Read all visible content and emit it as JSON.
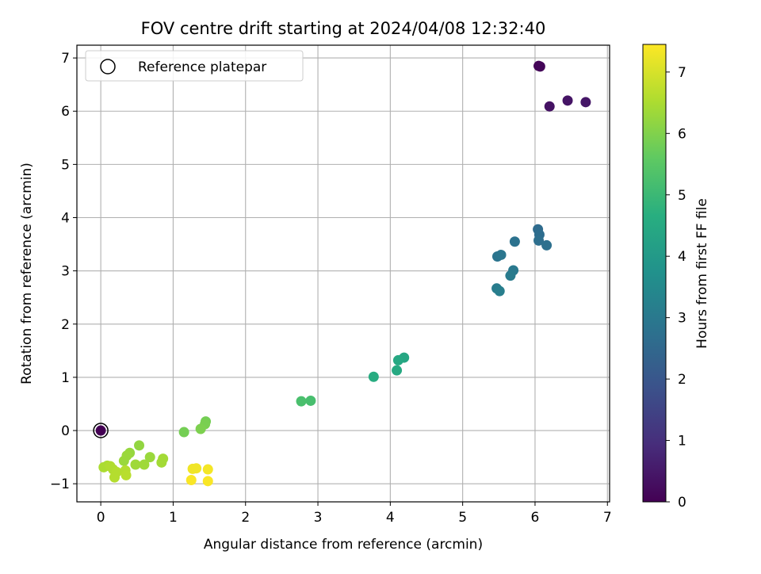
{
  "chart_data": {
    "type": "scatter",
    "title": "FOV centre drift starting at 2024/04/08 12:32:40",
    "xlabel": "Angular distance from reference (arcmin)",
    "ylabel": "Rotation from reference (arcmin)",
    "xlim": [
      -0.33,
      7.03
    ],
    "ylim": [
      -1.34,
      7.24
    ],
    "xticks": [
      0,
      1,
      2,
      3,
      4,
      5,
      6,
      7
    ],
    "xtick_labels": [
      "0",
      "1",
      "2",
      "3",
      "4",
      "5",
      "6",
      "7"
    ],
    "yticks": [
      -1,
      0,
      1,
      2,
      3,
      4,
      5,
      6,
      7
    ],
    "ytick_labels": [
      "−1",
      "0",
      "1",
      "2",
      "3",
      "4",
      "5",
      "6",
      "7"
    ],
    "grid": true,
    "legend": {
      "placement": "top-left",
      "entries": [
        "Reference platepar"
      ]
    },
    "colorbar": {
      "label": "Hours from first FF file",
      "range": [
        0,
        7.45
      ],
      "ticks": [
        0,
        1,
        2,
        3,
        4,
        5,
        6,
        7
      ],
      "tick_labels": [
        "0",
        "1",
        "2",
        "3",
        "4",
        "5",
        "6",
        "7"
      ],
      "colormap": "viridis"
    },
    "reference_point": {
      "x": 0,
      "y": 0
    },
    "points": [
      {
        "x": 0.0,
        "y": 0.0,
        "c": 0.0
      },
      {
        "x": 6.05,
        "y": 6.85,
        "c": 0.05
      },
      {
        "x": 6.07,
        "y": 6.84,
        "c": 0.1
      },
      {
        "x": 6.2,
        "y": 6.09,
        "c": 0.35
      },
      {
        "x": 6.45,
        "y": 6.2,
        "c": 0.4
      },
      {
        "x": 6.7,
        "y": 6.17,
        "c": 0.45
      },
      {
        "x": 6.04,
        "y": 3.78,
        "c": 2.6
      },
      {
        "x": 6.06,
        "y": 3.68,
        "c": 2.65
      },
      {
        "x": 6.05,
        "y": 3.57,
        "c": 2.7
      },
      {
        "x": 6.16,
        "y": 3.48,
        "c": 2.75
      },
      {
        "x": 5.72,
        "y": 3.55,
        "c": 2.8
      },
      {
        "x": 5.48,
        "y": 3.27,
        "c": 2.85
      },
      {
        "x": 5.53,
        "y": 3.3,
        "c": 2.9
      },
      {
        "x": 5.7,
        "y": 3.01,
        "c": 3.0
      },
      {
        "x": 5.66,
        "y": 2.91,
        "c": 3.05
      },
      {
        "x": 5.47,
        "y": 2.67,
        "c": 3.1
      },
      {
        "x": 5.51,
        "y": 2.62,
        "c": 3.15
      },
      {
        "x": 4.19,
        "y": 1.37,
        "c": 4.4
      },
      {
        "x": 4.11,
        "y": 1.32,
        "c": 4.45
      },
      {
        "x": 4.09,
        "y": 1.13,
        "c": 4.5
      },
      {
        "x": 3.77,
        "y": 1.01,
        "c": 4.6
      },
      {
        "x": 2.9,
        "y": 0.56,
        "c": 5.2
      },
      {
        "x": 2.77,
        "y": 0.55,
        "c": 5.25
      },
      {
        "x": 1.45,
        "y": 0.17,
        "c": 5.85
      },
      {
        "x": 1.44,
        "y": 0.12,
        "c": 5.9
      },
      {
        "x": 1.38,
        "y": 0.03,
        "c": 5.95
      },
      {
        "x": 1.15,
        "y": -0.03,
        "c": 5.85
      },
      {
        "x": 0.53,
        "y": -0.28,
        "c": 6.2
      },
      {
        "x": 0.4,
        "y": -0.42,
        "c": 6.25
      },
      {
        "x": 0.36,
        "y": -0.47,
        "c": 6.3
      },
      {
        "x": 0.32,
        "y": -0.57,
        "c": 6.3
      },
      {
        "x": 0.48,
        "y": -0.64,
        "c": 6.35
      },
      {
        "x": 0.6,
        "y": -0.64,
        "c": 6.35
      },
      {
        "x": 0.68,
        "y": -0.5,
        "c": 6.3
      },
      {
        "x": 0.86,
        "y": -0.53,
        "c": 6.4
      },
      {
        "x": 0.84,
        "y": -0.6,
        "c": 6.4
      },
      {
        "x": 0.04,
        "y": -0.69,
        "c": 6.5
      },
      {
        "x": 0.09,
        "y": -0.66,
        "c": 6.5
      },
      {
        "x": 0.13,
        "y": -0.67,
        "c": 6.55
      },
      {
        "x": 0.17,
        "y": -0.73,
        "c": 6.55
      },
      {
        "x": 0.22,
        "y": -0.78,
        "c": 6.6
      },
      {
        "x": 0.19,
        "y": -0.88,
        "c": 6.6
      },
      {
        "x": 0.34,
        "y": -0.75,
        "c": 6.6
      },
      {
        "x": 0.35,
        "y": -0.84,
        "c": 6.65
      },
      {
        "x": 1.27,
        "y": -0.72,
        "c": 7.3
      },
      {
        "x": 1.32,
        "y": -0.71,
        "c": 7.3
      },
      {
        "x": 1.48,
        "y": -0.73,
        "c": 7.35
      },
      {
        "x": 1.25,
        "y": -0.93,
        "c": 7.4
      },
      {
        "x": 1.48,
        "y": -0.95,
        "c": 7.4
      }
    ]
  }
}
